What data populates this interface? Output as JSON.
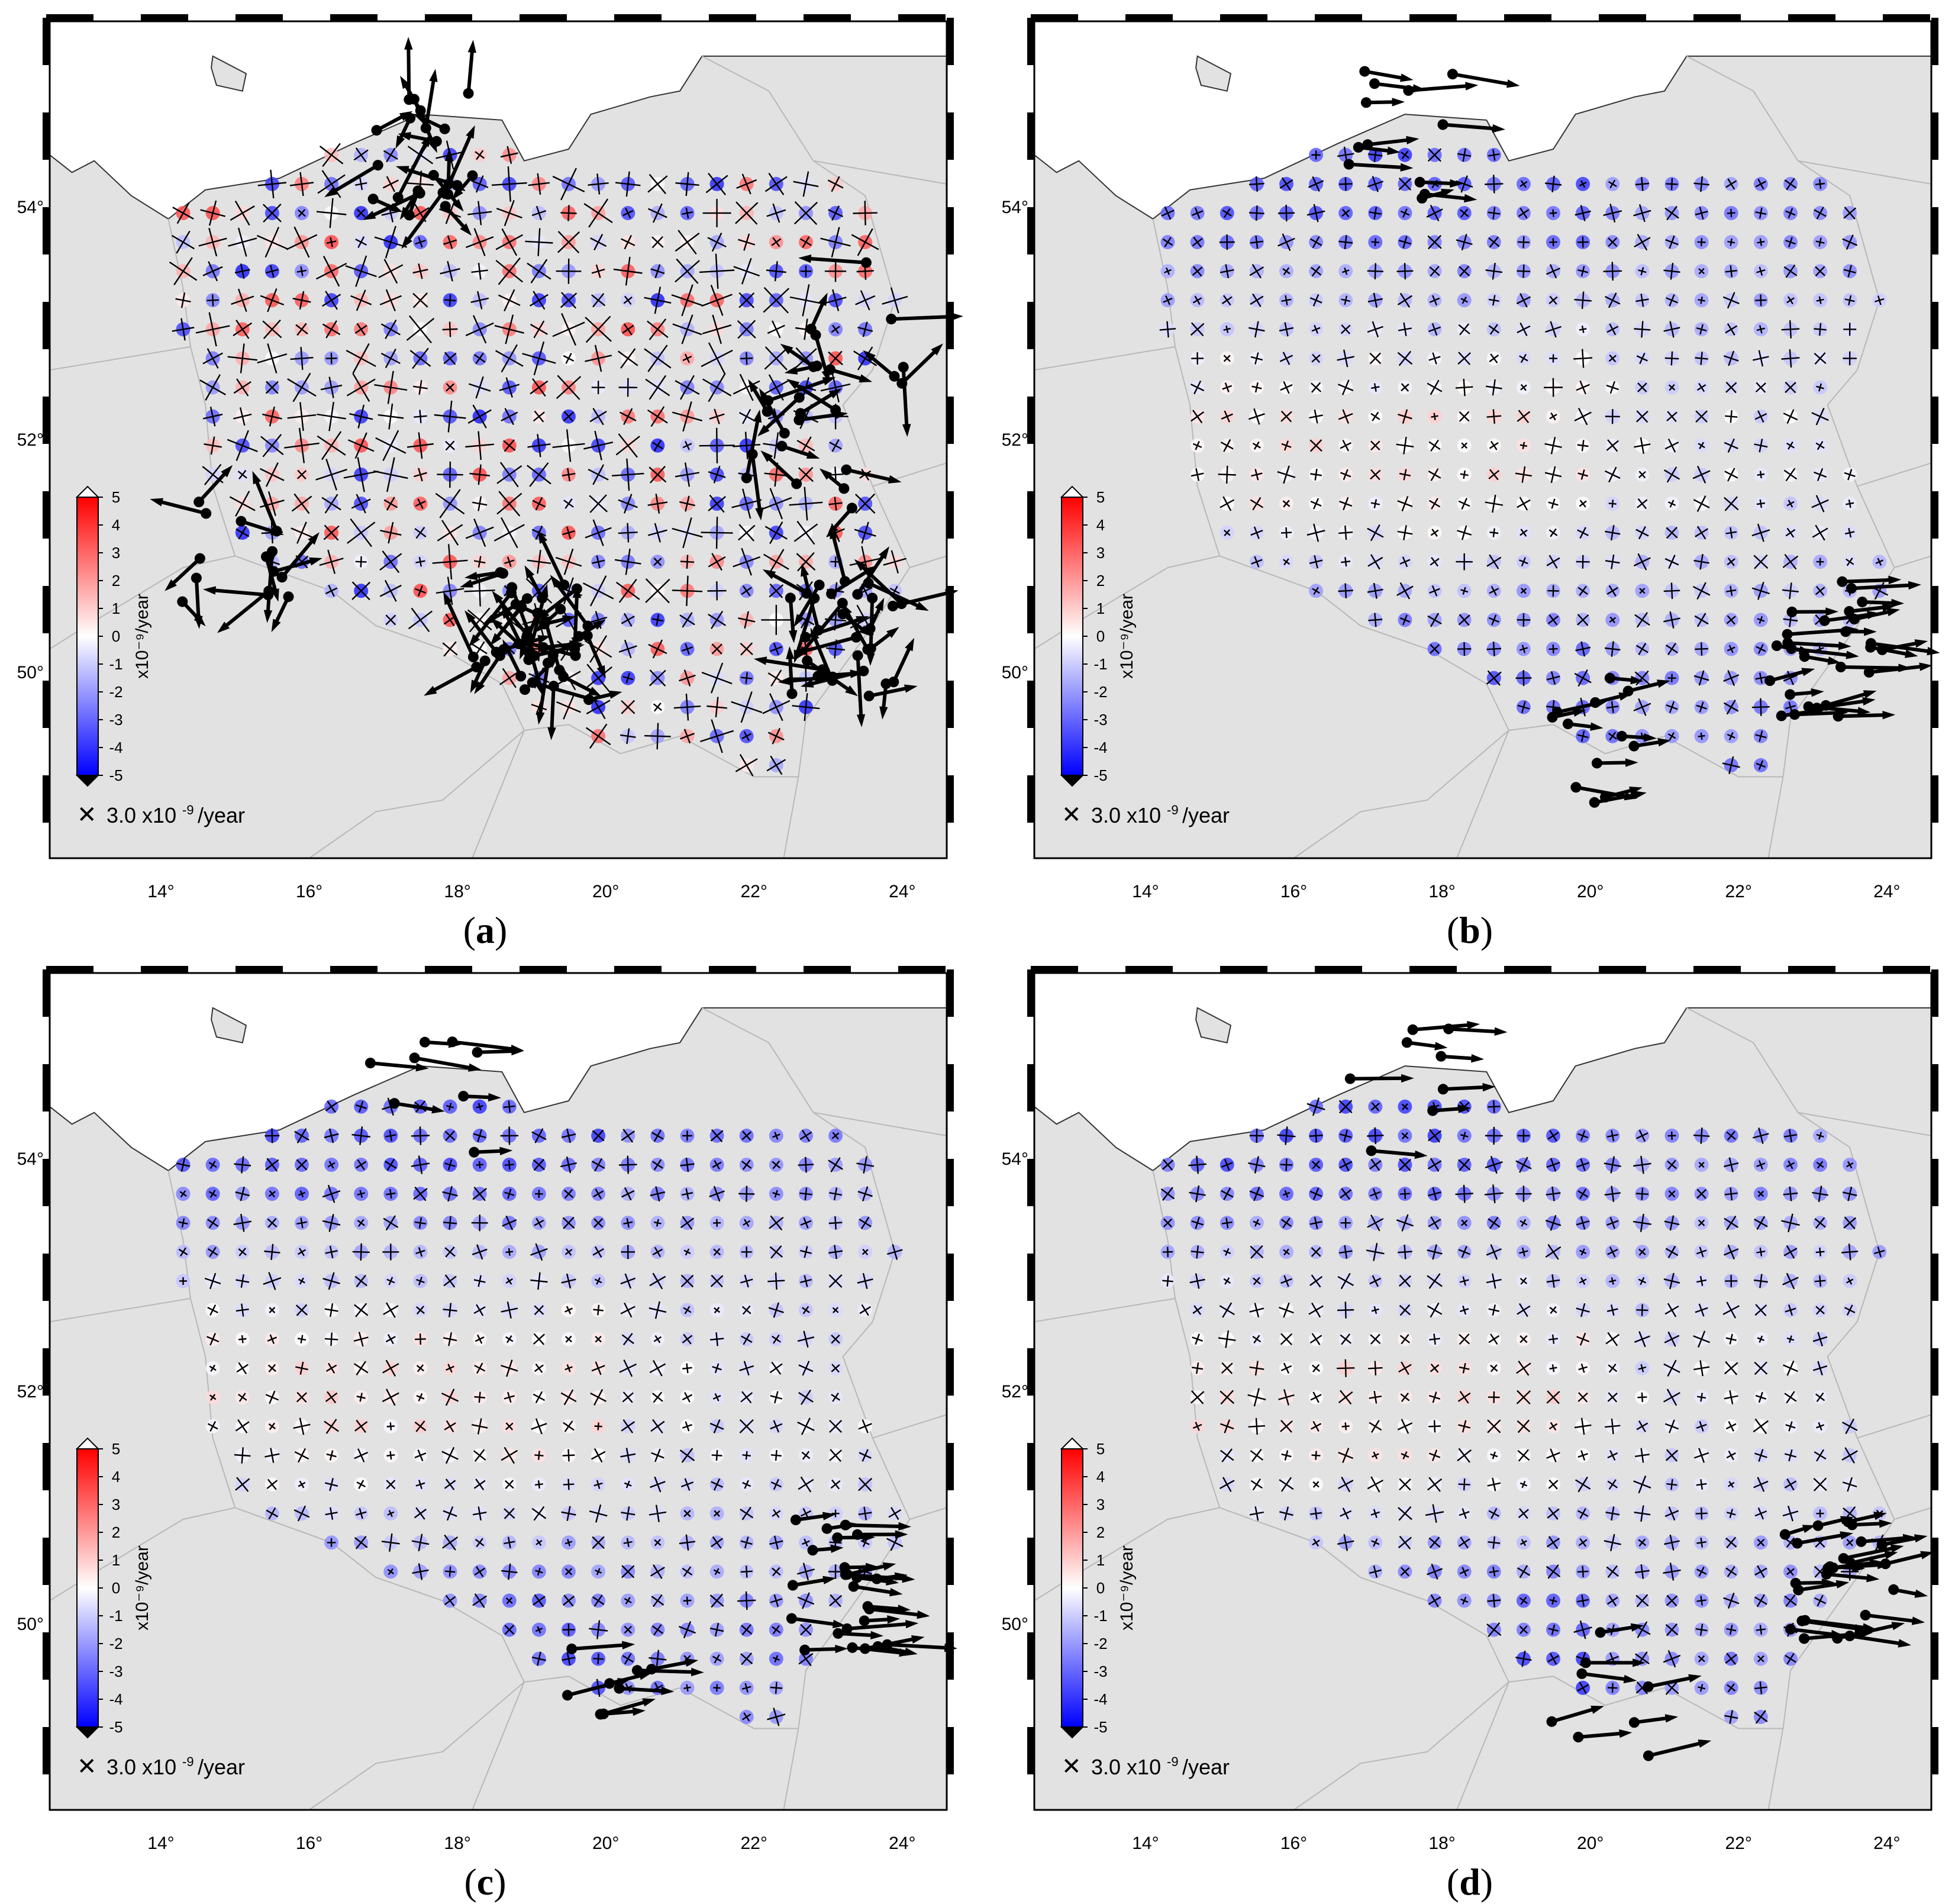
{
  "panels": [
    {
      "id": "a",
      "caption": "a",
      "variant": 0
    },
    {
      "id": "b",
      "caption": "b",
      "variant": 1
    },
    {
      "id": "c",
      "caption": "c",
      "variant": 2
    },
    {
      "id": "d",
      "caption": "d",
      "variant": 3
    }
  ],
  "map": {
    "lon_ticks": [
      "14°",
      "16°",
      "18°",
      "20°",
      "22°",
      "24°"
    ],
    "lat_ticks": [
      "54°",
      "52°",
      "50°"
    ],
    "lon_range": [
      12.5,
      24.6
    ],
    "lat_range": [
      48.4,
      55.6
    ]
  },
  "colorbar": {
    "label": "x10⁻⁹/year",
    "ticks": [
      "5",
      "4",
      "3",
      "2",
      "1",
      "0",
      "-1",
      "-2",
      "-3",
      "-4",
      "-5"
    ],
    "min": -5,
    "max": 5,
    "colors": {
      "low": "#0000ff",
      "mid": "#ffffff",
      "high": "#ff0000"
    }
  },
  "scale": {
    "symbol": "✕",
    "text": "3.0 x10",
    "exponent": "-9",
    "unit": "/year"
  },
  "colors": {
    "land": "#e2e2e2",
    "sea": "#ffffff",
    "border": "#b8b8b8",
    "coast": "#333333",
    "arrow": "#000000"
  }
}
